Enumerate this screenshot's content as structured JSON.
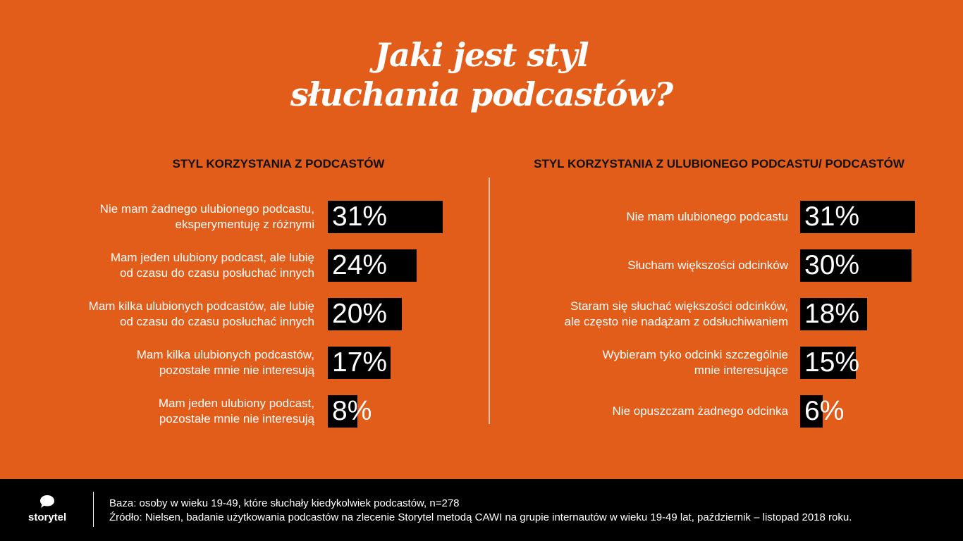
{
  "title": {
    "line1": "Jaki jest styl",
    "line2": "słuchania podcastów?"
  },
  "chart_data": [
    {
      "type": "bar",
      "title": "STYL KORZYSTANIA Z PODCASTÓW",
      "orientation": "horizontal",
      "categories": [
        [
          "Nie mam żadnego ulubionego podcastu,",
          "eksperymentuję z różnymi"
        ],
        [
          "Mam jeden ulubiony podcast, ale lubię",
          "od czasu do czasu posłuchać innych"
        ],
        [
          "Mam kilka ulubionych podcastów, ale lubię",
          "od czasu do czasu posłuchać innych"
        ],
        [
          "Mam kilka ulubionych podcastów,",
          "pozostałe mnie nie interesują"
        ],
        [
          "Mam jeden ulubiony podcast,",
          "pozostałe mnie nie interesują"
        ]
      ],
      "values": [
        31,
        24,
        20,
        17,
        8
      ],
      "value_suffix": "%",
      "xlim": [
        0,
        31
      ]
    },
    {
      "type": "bar",
      "title": "STYL KORZYSTANIA Z ULUBIONEGO PODCASTU/ PODCASTÓW",
      "orientation": "horizontal",
      "categories": [
        [
          "Nie mam ulubionego podcastu"
        ],
        [
          "Słucham większości odcinków"
        ],
        [
          "Staram się słuchać większości odcinków,",
          "ale często nie nadążam z odsłuchiwaniem"
        ],
        [
          "Wybieram tyko odcinki szczególnie",
          "mnie interesujące"
        ],
        [
          "Nie opuszczam żadnego odcinka"
        ]
      ],
      "values": [
        31,
        30,
        18,
        15,
        6
      ],
      "value_suffix": "%",
      "xlim": [
        0,
        31
      ]
    }
  ],
  "footer": {
    "logo_text": "storytel",
    "logo_icon": "speech-bubble-icon",
    "base": "Baza: osoby w wieku 19-49, które słuchały kiedykolwiek podcastów, n=278",
    "source": "Źródło: Nielsen, badanie użytkowania podcastów na zlecenie Storytel metodą CAWI na grupie internautów w wieku 19-49 lat, październik – listopad 2018 roku."
  },
  "colors": {
    "background": "#e25c1a",
    "bar": "#000000",
    "text": "#ffffff",
    "heading": "#111111"
  }
}
